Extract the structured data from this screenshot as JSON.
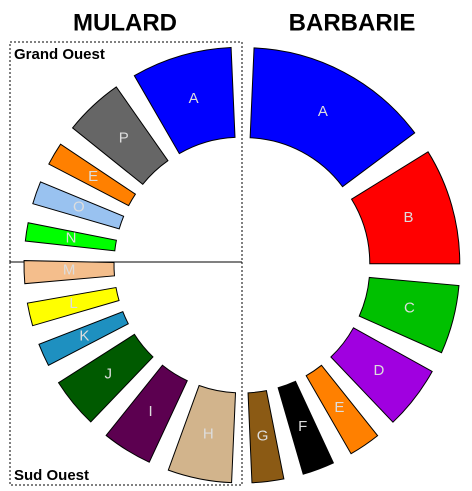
{
  "chart_data": [
    {
      "type": "pie",
      "title": "MULARD",
      "regions": [
        "Grand Ouest",
        "Sud Ouest"
      ],
      "categories": [
        "A",
        "P",
        "E",
        "O",
        "N",
        "M",
        "L",
        "K",
        "J",
        "I",
        "H"
      ],
      "values": [
        22,
        13,
        5,
        5,
        4,
        5,
        5,
        5,
        11,
        11,
        14
      ],
      "colors": [
        "#0000ff",
        "#666666",
        "#ff8000",
        "#99c2f0",
        "#00ff00",
        "#f4be8c",
        "#ffff00",
        "#1e90c0",
        "#005a00",
        "#5c0050",
        "#d2b48c"
      ]
    },
    {
      "type": "pie",
      "title": "BARBARIE",
      "categories": [
        "A",
        "B",
        "C",
        "D",
        "E",
        "F",
        "G"
      ],
      "values": [
        35,
        22,
        13,
        12,
        6,
        6,
        6
      ],
      "colors": [
        "#0000ff",
        "#ff0000",
        "#00c000",
        "#a000e0",
        "#ff8000",
        "#000000",
        "#8b5a14"
      ]
    }
  ]
}
